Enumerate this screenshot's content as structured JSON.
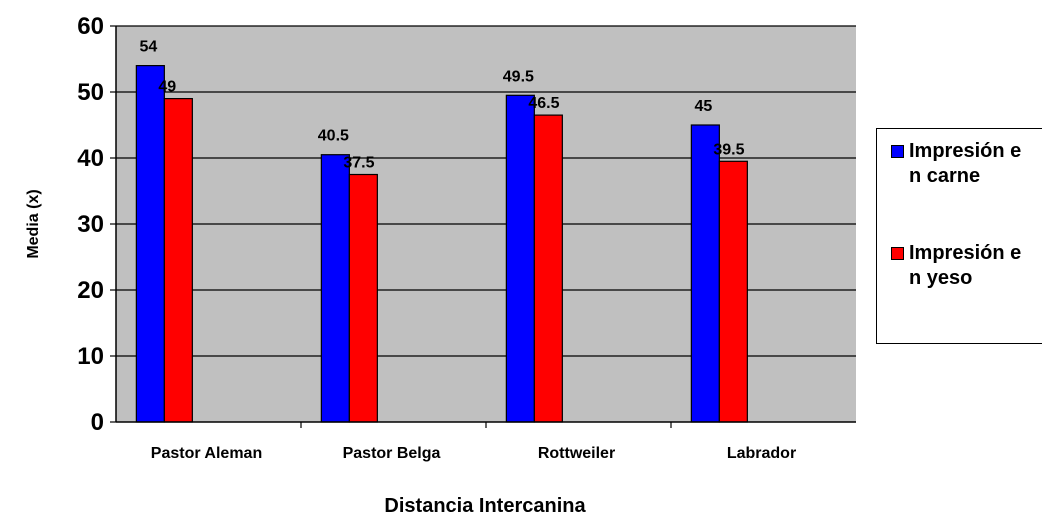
{
  "chart_data": {
    "type": "bar",
    "categories": [
      "Pastor Aleman",
      "Pastor Belga",
      "Rottweiler",
      "Labrador"
    ],
    "series": [
      {
        "name": "Impresión en carne",
        "color": "#0000ff",
        "values": [
          54,
          40.5,
          49.5,
          45
        ]
      },
      {
        "name": "Impresión en yeso",
        "color": "#ff0000",
        "values": [
          49,
          37.5,
          46.5,
          39.5
        ]
      }
    ],
    "title": "",
    "xlabel": "Distancia Intercanina",
    "ylabel": "Media (x)",
    "ylim": [
      0,
      60
    ],
    "yticks": [
      0,
      10,
      20,
      30,
      40,
      50,
      60
    ],
    "grid": true,
    "plot_background": "#c0c0c0",
    "legend_position": "right"
  }
}
